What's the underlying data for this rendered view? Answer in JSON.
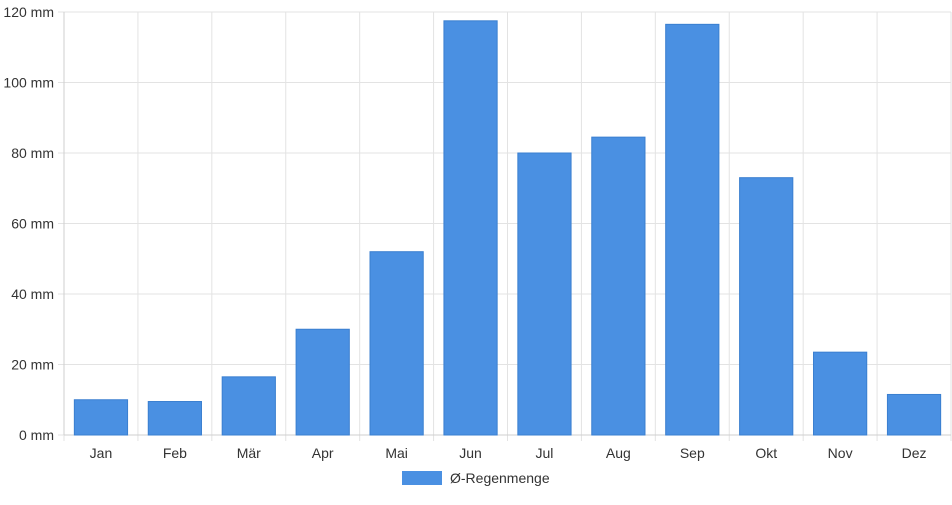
{
  "chart_data": {
    "type": "bar",
    "title": "",
    "xlabel": "",
    "ylabel": "",
    "y_unit": "mm",
    "categories": [
      "Jan",
      "Feb",
      "Mär",
      "Apr",
      "Mai",
      "Jun",
      "Jul",
      "Aug",
      "Sep",
      "Okt",
      "Nov",
      "Dez"
    ],
    "series": [
      {
        "name": "Ø-Regenmenge",
        "color": "#4a90e2",
        "values": [
          10,
          9.5,
          16.5,
          30,
          52,
          117.5,
          80,
          84.5,
          116.5,
          73,
          23.5,
          11.5
        ]
      }
    ],
    "ylim": [
      0,
      120
    ],
    "yticks": [
      0,
      20,
      40,
      60,
      80,
      100,
      120
    ],
    "ytick_labels": [
      "0 mm",
      "20 mm",
      "40 mm",
      "60 mm",
      "80 mm",
      "100 mm",
      "120 mm"
    ],
    "grid": true,
    "legend_position": "bottom-center"
  }
}
